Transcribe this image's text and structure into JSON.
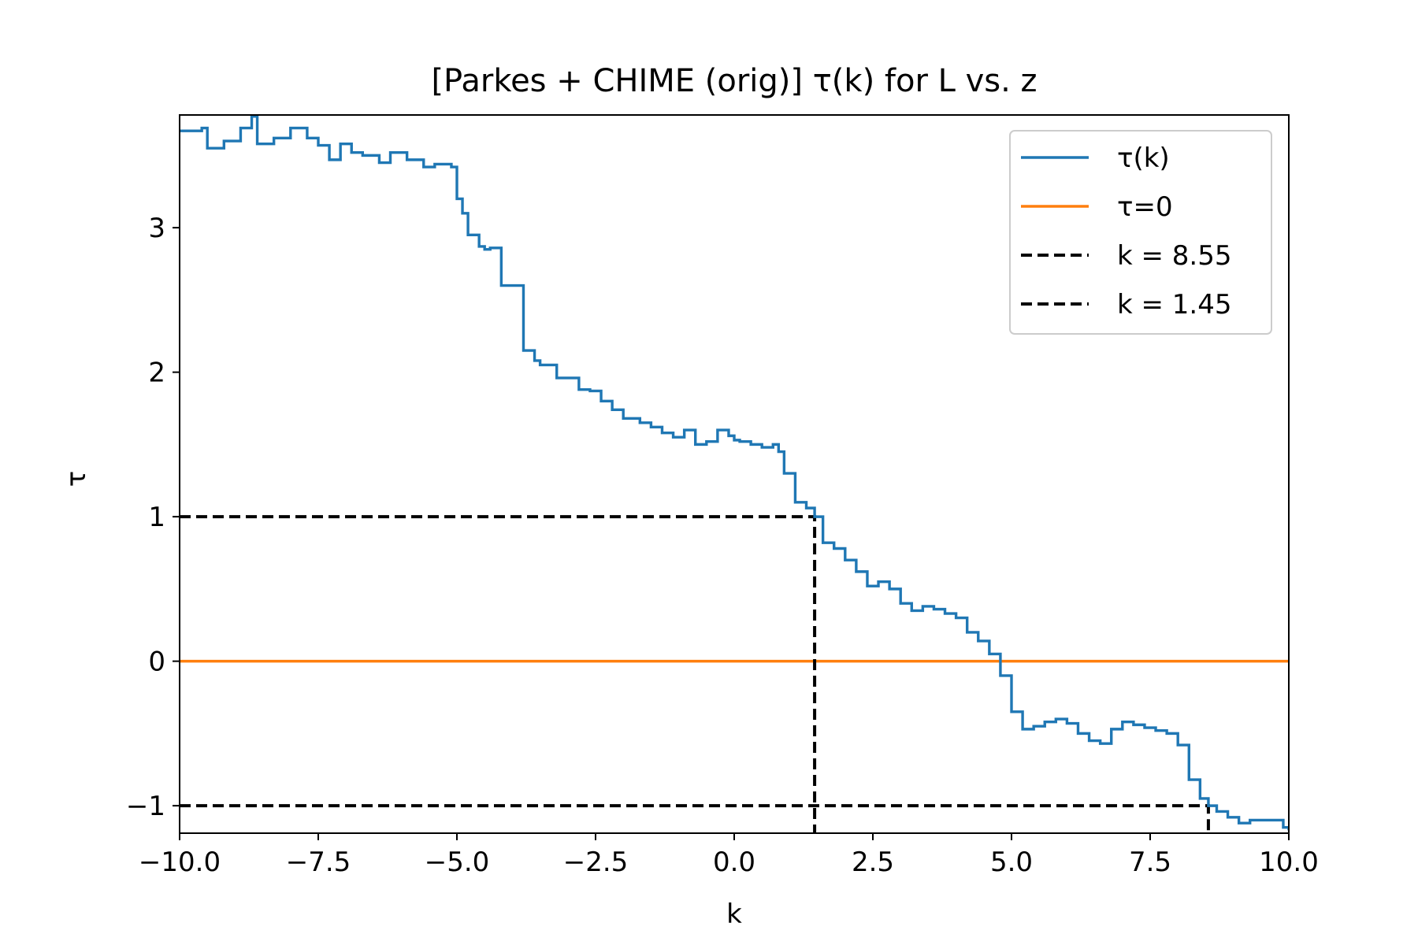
{
  "chart_data": {
    "type": "line",
    "title": "[Parkes + CHIME (orig)] τ(k) for L vs. z",
    "xlabel": "k",
    "ylabel": "τ",
    "xlim": [
      -10.0,
      10.0
    ],
    "ylim": [
      -1.19,
      3.78
    ],
    "xticks": [
      -10.0,
      -7.5,
      -5.0,
      -2.5,
      0.0,
      2.5,
      5.0,
      7.5,
      10.0
    ],
    "xtick_labels": [
      "−10.0",
      "−7.5",
      "−5.0",
      "−2.5",
      "0.0",
      "2.5",
      "5.0",
      "7.5",
      "10.0"
    ],
    "yticks": [
      -1,
      0,
      1,
      2,
      3
    ],
    "ytick_labels": [
      "−1",
      "0",
      "1",
      "2",
      "3"
    ],
    "grid": false,
    "legend_position": "top-right",
    "legend": [
      "τ(k)",
      "τ=0",
      "k = 8.55",
      "k = 1.45"
    ],
    "series": [
      {
        "name": "τ(k)",
        "color": "#1f77b4",
        "style": "step",
        "x": [
          -10.0,
          -9.6,
          -9.5,
          -9.2,
          -8.9,
          -8.7,
          -8.6,
          -8.3,
          -8.0,
          -7.7,
          -7.5,
          -7.3,
          -7.1,
          -6.9,
          -6.7,
          -6.4,
          -6.2,
          -5.9,
          -5.6,
          -5.4,
          -5.1,
          -5.0,
          -4.9,
          -4.8,
          -4.6,
          -4.5,
          -4.4,
          -4.2,
          -3.9,
          -3.8,
          -3.6,
          -3.5,
          -3.4,
          -3.2,
          -2.8,
          -2.6,
          -2.4,
          -2.2,
          -2.0,
          -1.7,
          -1.5,
          -1.3,
          -1.1,
          -0.9,
          -0.7,
          -0.5,
          -0.3,
          -0.1,
          0.0,
          0.1,
          0.3,
          0.5,
          0.7,
          0.8,
          0.9,
          1.1,
          1.3,
          1.45,
          1.6,
          1.8,
          2.0,
          2.2,
          2.4,
          2.6,
          2.8,
          3.0,
          3.2,
          3.4,
          3.6,
          3.8,
          4.0,
          4.2,
          4.4,
          4.6,
          4.8,
          5.0,
          5.2,
          5.4,
          5.6,
          5.8,
          6.0,
          6.2,
          6.4,
          6.6,
          6.8,
          7.0,
          7.2,
          7.4,
          7.6,
          7.8,
          8.0,
          8.2,
          8.4,
          8.55,
          8.7,
          8.9,
          9.1,
          9.3,
          9.5,
          9.7,
          9.9,
          10.0
        ],
        "y": [
          3.67,
          3.69,
          3.55,
          3.6,
          3.69,
          3.77,
          3.58,
          3.62,
          3.69,
          3.62,
          3.57,
          3.47,
          3.58,
          3.52,
          3.5,
          3.45,
          3.52,
          3.47,
          3.42,
          3.44,
          3.42,
          3.2,
          3.1,
          2.95,
          2.87,
          2.85,
          2.86,
          2.6,
          2.6,
          2.15,
          2.08,
          2.05,
          2.05,
          1.96,
          1.88,
          1.87,
          1.8,
          1.74,
          1.68,
          1.65,
          1.62,
          1.58,
          1.55,
          1.6,
          1.5,
          1.52,
          1.6,
          1.56,
          1.53,
          1.52,
          1.5,
          1.48,
          1.5,
          1.45,
          1.3,
          1.1,
          1.06,
          1.0,
          0.82,
          0.78,
          0.7,
          0.62,
          0.52,
          0.55,
          0.5,
          0.4,
          0.35,
          0.38,
          0.36,
          0.33,
          0.3,
          0.2,
          0.14,
          0.05,
          -0.1,
          -0.35,
          -0.47,
          -0.45,
          -0.42,
          -0.4,
          -0.43,
          -0.5,
          -0.55,
          -0.57,
          -0.47,
          -0.42,
          -0.44,
          -0.46,
          -0.48,
          -0.5,
          -0.58,
          -0.82,
          -0.95,
          -1.0,
          -1.04,
          -1.08,
          -1.12,
          -1.1,
          -1.1,
          -1.1,
          -1.15,
          -1.17
        ]
      },
      {
        "name": "τ=0",
        "color": "#ff7f0e",
        "x": [
          -10.0,
          10.0
        ],
        "y": [
          0,
          0
        ]
      },
      {
        "name": "k = 8.55",
        "color": "#000000",
        "dashed": true,
        "x": [
          -10.0,
          8.55,
          8.55
        ],
        "y": [
          -1.0,
          -1.0,
          -1.19
        ]
      },
      {
        "name": "k = 1.45",
        "color": "#000000",
        "dashed": true,
        "x": [
          -10.0,
          1.45,
          1.45
        ],
        "y": [
          1.0,
          1.0,
          -1.19
        ]
      }
    ]
  }
}
